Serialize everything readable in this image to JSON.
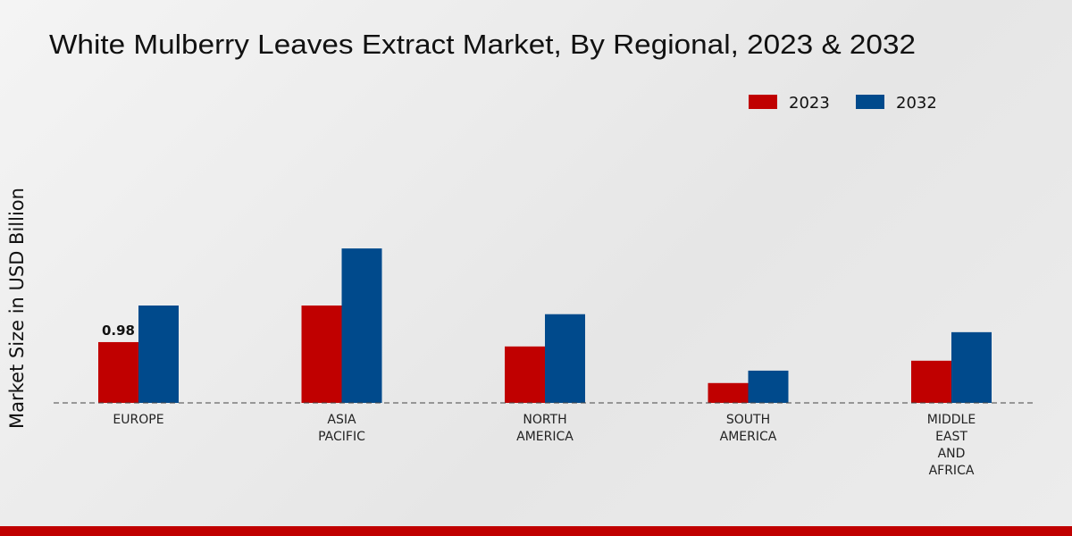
{
  "chart_data": {
    "type": "bar",
    "title": "White Mulberry Leaves Extract Market, By Regional, 2023 & 2032",
    "y_label": "Market Size in USD Billion",
    "categories": [
      "EUROPE",
      "ASIA\nPACIFIC",
      "NORTH\nAMERICA",
      "SOUTH\nAMERICA",
      "MIDDLE\nEAST\nAND\nAFRICA"
    ],
    "series": [
      {
        "name": "2023",
        "color": "#c00000",
        "values": [
          0.98,
          1.57,
          0.91,
          0.32,
          0.68
        ]
      },
      {
        "name": "2032",
        "color": "#004a8c",
        "values": [
          1.57,
          2.49,
          1.43,
          0.52,
          1.14
        ]
      }
    ],
    "ylim": [
      0,
      3.5
    ],
    "legend": "top-right"
  }
}
